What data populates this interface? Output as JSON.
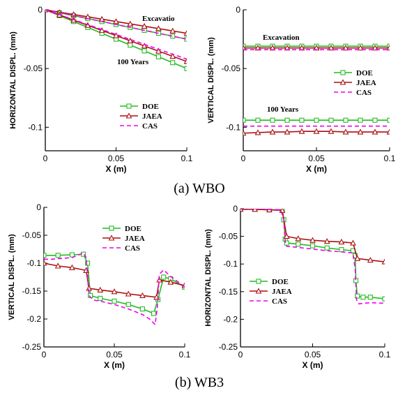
{
  "captions": [
    "(a) WBO",
    "(b) WB3"
  ],
  "colors": {
    "DOE": "#22bb22",
    "JAEA": "#aa1111",
    "CAS": "#ee00ee"
  },
  "chart_data": [
    {
      "type": "line",
      "xlabel": "X (m)",
      "ylabel": "HORIZONTAL DISPL. (mm)",
      "xlim": [
        0,
        0.1
      ],
      "ylim": [
        -0.12,
        0
      ],
      "xticks": [
        "0",
        "0.05",
        "0.1"
      ],
      "xtick_values": [
        0,
        0.05,
        0.1
      ],
      "yticks": [
        "0",
        "-0.05",
        "-0.1"
      ],
      "ytick_values": [
        0,
        -0.05,
        -0.1
      ],
      "legend": [
        "DOE",
        "JAEA",
        "CAS"
      ],
      "legend_position": "bottom-right",
      "annotations": [
        "Excavatio",
        "100 Years"
      ],
      "series": [
        {
          "name": "DOE",
          "group": "Excavation",
          "x": [
            0,
            0.01,
            0.02,
            0.03,
            0.04,
            0.05,
            0.06,
            0.07,
            0.08,
            0.09,
            0.1
          ],
          "y": [
            0,
            -0.0025,
            -0.005,
            -0.0075,
            -0.01,
            -0.0125,
            -0.015,
            -0.0175,
            -0.02,
            -0.0225,
            -0.025
          ]
        },
        {
          "name": "JAEA",
          "group": "Excavation",
          "x": [
            0,
            0.01,
            0.02,
            0.03,
            0.04,
            0.05,
            0.06,
            0.07,
            0.08,
            0.09,
            0.1
          ],
          "y": [
            0,
            -0.002,
            -0.004,
            -0.006,
            -0.008,
            -0.01,
            -0.012,
            -0.014,
            -0.016,
            -0.018,
            -0.02
          ]
        },
        {
          "name": "CAS",
          "group": "Excavation",
          "x": [
            0,
            0.01,
            0.02,
            0.03,
            0.04,
            0.05,
            0.06,
            0.07,
            0.08,
            0.09,
            0.1
          ],
          "y": [
            0,
            -0.0025,
            -0.005,
            -0.0075,
            -0.01,
            -0.0125,
            -0.015,
            -0.0175,
            -0.02,
            -0.0225,
            -0.025
          ]
        },
        {
          "name": "DOE",
          "group": "100 Years",
          "x": [
            0,
            0.01,
            0.02,
            0.03,
            0.04,
            0.05,
            0.06,
            0.07,
            0.08,
            0.09,
            0.1
          ],
          "y": [
            0,
            -0.005,
            -0.01,
            -0.015,
            -0.02,
            -0.025,
            -0.03,
            -0.035,
            -0.04,
            -0.045,
            -0.05
          ]
        },
        {
          "name": "JAEA",
          "group": "100 Years",
          "x": [
            0,
            0.01,
            0.02,
            0.03,
            0.04,
            0.05,
            0.06,
            0.07,
            0.08,
            0.09,
            0.1
          ],
          "y": [
            0,
            -0.0044,
            -0.0088,
            -0.0132,
            -0.0176,
            -0.022,
            -0.0264,
            -0.0308,
            -0.0352,
            -0.0396,
            -0.044
          ]
        },
        {
          "name": "CAS",
          "group": "100 Years",
          "x": [
            0,
            0.01,
            0.02,
            0.03,
            0.04,
            0.05,
            0.06,
            0.07,
            0.08,
            0.09,
            0.1
          ],
          "y": [
            0,
            -0.0042,
            -0.0084,
            -0.0126,
            -0.0168,
            -0.021,
            -0.0252,
            -0.0294,
            -0.0336,
            -0.0378,
            -0.042
          ]
        }
      ]
    },
    {
      "type": "line",
      "xlabel": "X (m)",
      "ylabel": "VERTICAL DISPL. (mm)",
      "xlim": [
        0,
        0.1
      ],
      "ylim": [
        -0.12,
        0
      ],
      "xticks": [
        "0",
        "0.05",
        "0.1"
      ],
      "xtick_values": [
        0,
        0.05,
        0.1
      ],
      "yticks": [
        "0",
        "-0.05",
        "-0.1"
      ],
      "ytick_values": [
        0,
        -0.05,
        -0.1
      ],
      "legend": [
        "DOE",
        "JAEA",
        "CAS"
      ],
      "legend_position": "right",
      "annotations": [
        "Excavation",
        "100 Years"
      ],
      "series": [
        {
          "name": "DOE",
          "group": "Excavation",
          "x": [
            0,
            0.01,
            0.02,
            0.03,
            0.04,
            0.05,
            0.06,
            0.07,
            0.08,
            0.09,
            0.1
          ],
          "y": [
            -0.031,
            -0.031,
            -0.031,
            -0.031,
            -0.031,
            -0.031,
            -0.031,
            -0.031,
            -0.031,
            -0.031,
            -0.031
          ]
        },
        {
          "name": "JAEA",
          "group": "Excavation",
          "x": [
            0,
            0.01,
            0.02,
            0.03,
            0.04,
            0.05,
            0.06,
            0.07,
            0.08,
            0.09,
            0.1
          ],
          "y": [
            -0.0325,
            -0.0325,
            -0.0325,
            -0.0325,
            -0.0325,
            -0.0325,
            -0.0325,
            -0.0325,
            -0.0325,
            -0.0325,
            -0.0325
          ]
        },
        {
          "name": "CAS",
          "group": "Excavation",
          "x": [
            0,
            0.01,
            0.02,
            0.03,
            0.04,
            0.05,
            0.06,
            0.07,
            0.08,
            0.09,
            0.1
          ],
          "y": [
            -0.034,
            -0.034,
            -0.034,
            -0.034,
            -0.034,
            -0.034,
            -0.034,
            -0.034,
            -0.034,
            -0.034,
            -0.034
          ]
        },
        {
          "name": "DOE",
          "group": "100 Years",
          "x": [
            0,
            0.01,
            0.02,
            0.03,
            0.04,
            0.05,
            0.06,
            0.07,
            0.08,
            0.09,
            0.1
          ],
          "y": [
            -0.094,
            -0.094,
            -0.094,
            -0.094,
            -0.094,
            -0.094,
            -0.094,
            -0.094,
            -0.094,
            -0.094,
            -0.094
          ]
        },
        {
          "name": "JAEA",
          "group": "100 Years",
          "x": [
            0,
            0.01,
            0.02,
            0.03,
            0.04,
            0.05,
            0.06,
            0.07,
            0.08,
            0.09,
            0.1
          ],
          "y": [
            -0.105,
            -0.1045,
            -0.104,
            -0.104,
            -0.1035,
            -0.1035,
            -0.1035,
            -0.104,
            -0.104,
            -0.104,
            -0.104
          ]
        },
        {
          "name": "CAS",
          "group": "100 Years",
          "x": [
            0,
            0.01,
            0.02,
            0.03,
            0.04,
            0.05,
            0.06,
            0.07,
            0.08,
            0.09,
            0.1
          ],
          "y": [
            -0.099,
            -0.099,
            -0.099,
            -0.099,
            -0.099,
            -0.099,
            -0.099,
            -0.099,
            -0.099,
            -0.099,
            -0.099
          ]
        }
      ]
    },
    {
      "type": "line",
      "xlabel": "X (m)",
      "ylabel": "VERTICAL DISPL. (mm)",
      "xlim": [
        0,
        0.1
      ],
      "ylim": [
        -0.25,
        0
      ],
      "xticks": [
        "0",
        "0.05",
        "0.1"
      ],
      "xtick_values": [
        0,
        0.05,
        0.1
      ],
      "yticks": [
        "0",
        "-0.05",
        "-0.1",
        "-0.15",
        "-0.2",
        "-0.25"
      ],
      "ytick_values": [
        0,
        -0.05,
        -0.1,
        -0.15,
        -0.2,
        -0.25
      ],
      "legend": [
        "DOE",
        "JAEA",
        "CAS"
      ],
      "legend_position": "top-right",
      "series": [
        {
          "name": "DOE",
          "x": [
            0,
            0.01,
            0.02,
            0.028,
            0.031,
            0.033,
            0.04,
            0.05,
            0.06,
            0.07,
            0.078,
            0.081,
            0.085,
            0.09,
            0.1
          ],
          "y": [
            -0.086,
            -0.086,
            -0.085,
            -0.084,
            -0.1,
            -0.158,
            -0.163,
            -0.168,
            -0.174,
            -0.182,
            -0.19,
            -0.165,
            -0.125,
            -0.128,
            -0.143
          ]
        },
        {
          "name": "JAEA",
          "x": [
            0,
            0.01,
            0.02,
            0.03,
            0.032,
            0.04,
            0.05,
            0.06,
            0.07,
            0.08,
            0.082,
            0.09,
            0.1
          ],
          "y": [
            -0.1,
            -0.105,
            -0.108,
            -0.113,
            -0.145,
            -0.148,
            -0.151,
            -0.155,
            -0.158,
            -0.161,
            -0.13,
            -0.134,
            -0.14
          ]
        },
        {
          "name": "CAS",
          "x": [
            0,
            0.005,
            0.01,
            0.02,
            0.028,
            0.03,
            0.032,
            0.035,
            0.04,
            0.05,
            0.06,
            0.07,
            0.075,
            0.079,
            0.0805,
            0.082,
            0.085,
            0.09,
            0.1
          ],
          "y": [
            -0.093,
            -0.093,
            -0.092,
            -0.09,
            -0.082,
            -0.09,
            -0.158,
            -0.166,
            -0.168,
            -0.174,
            -0.182,
            -0.192,
            -0.2,
            -0.21,
            -0.18,
            -0.12,
            -0.112,
            -0.124,
            -0.142
          ]
        }
      ]
    },
    {
      "type": "line",
      "xlabel": "X (m)",
      "ylabel": "HORIZONTAL DISPL. (mm)",
      "xlim": [
        0,
        0.1
      ],
      "ylim": [
        -0.25,
        0
      ],
      "xticks": [
        "0",
        "0.05",
        "0.1"
      ],
      "xtick_values": [
        0,
        0.05,
        0.1
      ],
      "yticks": [
        "0",
        "-0.05",
        "-0.1",
        "-0.15",
        "-0.2",
        "-0.25"
      ],
      "ytick_values": [
        0,
        -0.05,
        -0.1,
        -0.15,
        -0.2,
        -0.25
      ],
      "legend": [
        "DOE",
        "JAEA",
        "CAS"
      ],
      "legend_position": "bottom-left",
      "series": [
        {
          "name": "DOE",
          "x": [
            0,
            0.01,
            0.02,
            0.029,
            0.03,
            0.031,
            0.032,
            0.04,
            0.05,
            0.06,
            0.07,
            0.078,
            0.0795,
            0.08,
            0.081,
            0.085,
            0.09,
            0.1
          ],
          "y": [
            -0.001,
            -0.001,
            -0.002,
            -0.003,
            -0.02,
            -0.055,
            -0.062,
            -0.064,
            -0.067,
            -0.071,
            -0.074,
            -0.076,
            -0.085,
            -0.13,
            -0.158,
            -0.16,
            -0.16,
            -0.163
          ]
        },
        {
          "name": "JAEA",
          "x": [
            0,
            0.01,
            0.02,
            0.029,
            0.032,
            0.04,
            0.05,
            0.06,
            0.07,
            0.078,
            0.081,
            0.09,
            0.1
          ],
          "y": [
            -0.001,
            -0.001,
            -0.002,
            -0.003,
            -0.05,
            -0.054,
            -0.057,
            -0.059,
            -0.06,
            -0.062,
            -0.09,
            -0.093,
            -0.096
          ]
        },
        {
          "name": "CAS",
          "x": [
            0,
            0.01,
            0.02,
            0.028,
            0.03,
            0.031,
            0.032,
            0.04,
            0.05,
            0.06,
            0.07,
            0.078,
            0.0795,
            0.0805,
            0.082,
            0.09,
            0.1
          ],
          "y": [
            0,
            0,
            -0.001,
            -0.002,
            -0.02,
            -0.06,
            -0.068,
            -0.07,
            -0.073,
            -0.076,
            -0.078,
            -0.08,
            -0.11,
            -0.165,
            -0.172,
            -0.17,
            -0.171
          ]
        }
      ]
    }
  ]
}
